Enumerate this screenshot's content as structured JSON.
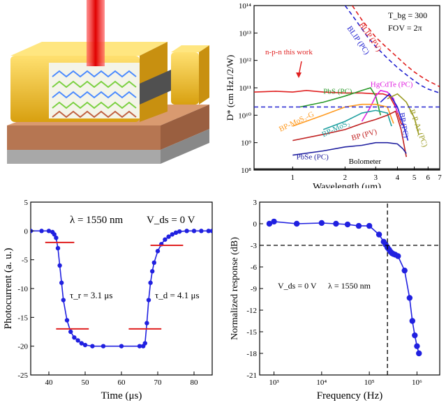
{
  "chart_data": [
    {
      "panel": "top-right",
      "type": "line",
      "xlabel": "Wavelength (μm)",
      "ylabel": "D* (cm Hz1/2/W)",
      "x_scale": "log",
      "y_scale": "log",
      "xlim": [
        0.6,
        7
      ],
      "ylim": [
        100000000.0,
        100000000000000.0
      ],
      "xticks": [
        "1",
        "2",
        "3",
        "4",
        "5",
        "6",
        "7"
      ],
      "yticks": [
        "10⁸",
        "10⁹",
        "10¹⁰",
        "10¹¹",
        "10¹²",
        "10¹³",
        "10¹⁴"
      ],
      "annotations": [
        "T_bg = 300",
        "FOV = 2π",
        "n-p-n this work"
      ],
      "series": [
        {
          "name": "BLIP (PV)",
          "color": "#e02020",
          "dash": true,
          "x": [
            2.2,
            2.5,
            3.0,
            3.5,
            4.0,
            4.5,
            5.0,
            5.5,
            6.0,
            6.5,
            7.0
          ],
          "y": [
            100000000000000.0,
            30000000000000.0,
            7000000000000.0,
            2800000000000.0,
            1300000000000.0,
            650000000000.0,
            380000000000.0,
            250000000000.0,
            180000000000.0,
            140000000000.0,
            110000000000.0
          ]
        },
        {
          "name": "BLIP (PC)",
          "color": "#2020d0",
          "dash": true,
          "x": [
            2.0,
            2.3,
            2.7,
            3.0,
            3.5,
            4.0,
            4.5,
            5.0,
            5.5,
            6.0,
            7.0
          ],
          "y": [
            100000000000000.0,
            30000000000000.0,
            7000000000000.0,
            3200000000000.0,
            1200000000000.0,
            550000000000.0,
            300000000000.0,
            180000000000.0,
            120000000000.0,
            90000000000.0,
            65000000000.0
          ]
        },
        {
          "name": "n-p-n this work",
          "color": "#e02020",
          "x": [
            0.6,
            0.8,
            1.0,
            1.2,
            1.5,
            2.0,
            2.5,
            3.0,
            3.3,
            3.6,
            3.9,
            4.2,
            4.4
          ],
          "y": [
            70000000000.0,
            75000000000.0,
            70000000000.0,
            80000000000.0,
            70000000000.0,
            65000000000.0,
            65000000000.0,
            60000000000.0,
            60000000000.0,
            50000000000.0,
            20000000000.0,
            5000000000.0,
            4000000000.0
          ]
        },
        {
          "name": "PbS (PC)",
          "color": "#2a9a2a",
          "x": [
            1.1,
            1.5,
            2.0,
            2.5,
            2.8,
            3.0,
            3.2
          ],
          "y": [
            20000000000.0,
            30000000000.0,
            50000000000.0,
            80000000000.0,
            100000000000.0,
            50000000000.0,
            10000000000.0
          ]
        },
        {
          "name": "HgCdTe (PC)",
          "color": "#e020e0",
          "x": [
            2.5,
            2.8,
            3.0,
            3.2,
            3.5,
            3.8,
            4.0
          ],
          "y": [
            6000000000.0,
            20000000000.0,
            50000000000.0,
            80000000000.0,
            70000000000.0,
            40000000000.0,
            12000000000.0
          ]
        },
        {
          "name": "BP (PC)",
          "color": "#2020d0",
          "x": [
            3.2,
            3.6,
            4.0,
            4.3,
            4.6
          ],
          "y": [
            30000000000.0,
            60000000000.0,
            20000000000.0,
            5000000000.0,
            1200000000.0
          ]
        },
        {
          "name": "B-P-As (PC)",
          "color": "#9a9a20",
          "x": [
            3.5,
            4.0,
            4.5,
            5.0,
            5.3
          ],
          "y": [
            40000000000.0,
            60000000000.0,
            30000000000.0,
            8000000000.0,
            2000000000.0
          ]
        },
        {
          "name": "BP-MoS₂-G",
          "color": "#ff9a20",
          "x": [
            1.0,
            1.5,
            2.0,
            2.5,
            3.0,
            3.5,
            3.8
          ],
          "y": [
            4000000000.0,
            10000000000.0,
            20000000000.0,
            25000000000.0,
            25000000000.0,
            20000000000.0,
            5000000000.0
          ]
        },
        {
          "name": "BP-MoS₂",
          "color": "#20a0a0",
          "x": [
            1.5,
            2.0,
            2.5,
            3.0,
            3.5,
            3.7
          ],
          "y": [
            3000000000.0,
            6000000000.0,
            12000000000.0,
            15000000000.0,
            12000000000.0,
            4000000000.0
          ]
        },
        {
          "name": "BP (PV)",
          "color": "#c02020",
          "x": [
            1.0,
            1.5,
            2.0,
            2.5,
            3.0,
            3.5,
            3.9,
            4.2,
            4.5
          ],
          "y": [
            1200000000.0,
            2000000000.0,
            3000000000.0,
            5000000000.0,
            7000000000.0,
            10000000000.0,
            14000000000.0,
            3000000000.0,
            300000000.0
          ]
        },
        {
          "name": "PbSe (PC)",
          "color": "#2020a0",
          "x": [
            1.0,
            1.5,
            2.0,
            2.5,
            3.0,
            3.5,
            4.0,
            4.3,
            4.5
          ],
          "y": [
            350000000.0,
            500000000.0,
            700000000.0,
            800000000.0,
            1000000000.0,
            1000000000.0,
            900000000.0,
            600000000.0,
            400000000.0
          ]
        },
        {
          "name": "Bolometer",
          "color": "#000000",
          "x": [
            0.6,
            7.0
          ],
          "y": [
            110000000.0,
            110000000.0
          ]
        },
        {
          "name": "reference",
          "color": "#2020d0",
          "dash": true,
          "x": [
            0.6,
            7.0
          ],
          "y": [
            20000000000.0,
            20000000000.0
          ]
        }
      ]
    },
    {
      "panel": "bottom-left",
      "type": "scatter",
      "xlabel": "Time (μs)",
      "ylabel": "Photocurrent (a. u.)",
      "xlim": [
        35,
        85
      ],
      "ylim": [
        -25,
        5
      ],
      "xticks": [
        "40",
        "50",
        "60",
        "70",
        "80"
      ],
      "yticks": [
        "5",
        "0",
        "-5",
        "-10",
        "-15",
        "-20",
        "-25"
      ],
      "annotations": [
        "λ = 1550 nm",
        "V_ds = 0 V",
        "τ_r = 3.1 μs",
        "τ_d = 4.1 μs"
      ],
      "series": [
        {
          "name": "photocurrent",
          "color": "#2020e0",
          "x": [
            35,
            38,
            40,
            41,
            41.5,
            42,
            42.5,
            43,
            43.5,
            44,
            45,
            46,
            47,
            48,
            49,
            50,
            52,
            55,
            60,
            65,
            66,
            66.5,
            67,
            67.5,
            68,
            68.5,
            69,
            70,
            71,
            72,
            73,
            74,
            75,
            76,
            78,
            80,
            82,
            84,
            85
          ],
          "y": [
            0,
            0,
            0,
            -0.2,
            -0.6,
            -1.2,
            -3,
            -6,
            -9,
            -12,
            -15.5,
            -17.5,
            -18.5,
            -19,
            -19.5,
            -19.8,
            -20,
            -20,
            -20,
            -20,
            -20,
            -19.5,
            -16,
            -12,
            -9,
            -7,
            -5.5,
            -3.5,
            -2.3,
            -1.5,
            -1,
            -0.6,
            -0.3,
            -0.1,
            0,
            0,
            0,
            0,
            0
          ]
        },
        {
          "name": "rise-10",
          "color": "#e02020",
          "x": [
            39,
            47
          ],
          "y": [
            -2,
            -2
          ]
        },
        {
          "name": "rise-90",
          "color": "#e02020",
          "x": [
            42,
            51
          ],
          "y": [
            -17,
            -17
          ]
        },
        {
          "name": "fall-90",
          "color": "#e02020",
          "x": [
            62,
            71
          ],
          "y": [
            -17,
            -17
          ]
        },
        {
          "name": "fall-10",
          "color": "#e02020",
          "x": [
            68,
            77
          ],
          "y": [
            -2.5,
            -2.5
          ]
        }
      ]
    },
    {
      "panel": "bottom-right",
      "type": "line",
      "xlabel": "Frequency (Hz)",
      "ylabel": "Normalized response (dB)",
      "x_scale": "log",
      "xlim": [
        500,
        3000000.0
      ],
      "ylim": [
        -21,
        3
      ],
      "xticks": [
        "10³",
        "10⁴",
        "10⁵",
        "10⁶"
      ],
      "yticks": [
        "3",
        "0",
        "-3",
        "-6",
        "-9",
        "-12",
        "-15",
        "-18",
        "-21"
      ],
      "annotations": [
        "V_ds = 0 V",
        "λ = 1550 nm"
      ],
      "series": [
        {
          "name": "response",
          "color": "#2020e0",
          "x": [
            800,
            1000,
            3000,
            10000,
            20000,
            35000,
            60000,
            100000,
            160000,
            200000,
            220000,
            240000,
            260000,
            280000,
            300000,
            320000,
            350000,
            400000,
            550000,
            700000,
            800000,
            900000,
            1000000,
            1100000
          ],
          "y": [
            0,
            0.3,
            0,
            0.1,
            0,
            -0.1,
            -0.3,
            -0.3,
            -1.5,
            -2.5,
            -2.9,
            -3.3,
            -3.6,
            -3.9,
            -4.1,
            -4.2,
            -4.3,
            -4.5,
            -6.5,
            -10.3,
            -13.5,
            -15.5,
            -17,
            -18
          ]
        },
        {
          "name": "-3dB line",
          "color": "#000000",
          "dash": true,
          "x": [
            500,
            3000000.0
          ],
          "y": [
            -3,
            -3
          ]
        },
        {
          "name": "cutoff line",
          "color": "#000000",
          "dash": true,
          "x": [
            240000,
            240000
          ],
          "y": [
            -21,
            3
          ]
        }
      ]
    }
  ]
}
